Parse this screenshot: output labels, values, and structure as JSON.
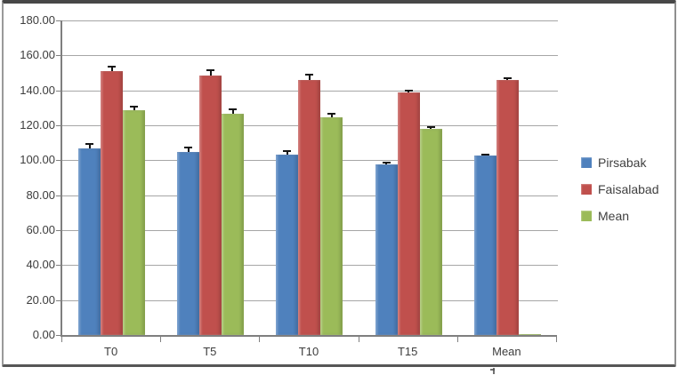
{
  "chart_data": {
    "type": "bar",
    "title": "",
    "xlabel": "",
    "ylabel": "",
    "categories": [
      "T0",
      "T5",
      "T10",
      "T15",
      "Mean"
    ],
    "series": [
      {
        "name": "Pirsabak",
        "color": "#4F81BD",
        "values": [
          107.0,
          104.5,
          103.0,
          97.5,
          102.5
        ],
        "errors": [
          2.4,
          2.8,
          2.2,
          1.0,
          0.8
        ]
      },
      {
        "name": "Faisalabad",
        "color": "#C0504D",
        "values": [
          151.0,
          148.5,
          146.0,
          139.0,
          146.0
        ],
        "errors": [
          2.6,
          2.8,
          3.0,
          0.8,
          0.8
        ]
      },
      {
        "name": "Mean",
        "color": "#9BBB59",
        "values": [
          128.5,
          126.5,
          124.5,
          118.0,
          0.5
        ],
        "errors": [
          2.4,
          2.6,
          2.2,
          1.2,
          0.0
        ]
      }
    ],
    "ylim": [
      0,
      180
    ],
    "ytick_step": 20,
    "ytick_labels": [
      "0.00",
      "20.00",
      "40.00",
      "60.00",
      "80.00",
      "100.00",
      "120.00",
      "140.00",
      "160.00",
      "180.00"
    ],
    "grid": true,
    "error_bars": "upper",
    "legend_position": "right"
  },
  "colors": {
    "gridline": "#a6a6a6",
    "axis": "#7f7f7f",
    "text": "#3d3d3d",
    "error_bar": "#141414",
    "frame_border": "#474747"
  }
}
